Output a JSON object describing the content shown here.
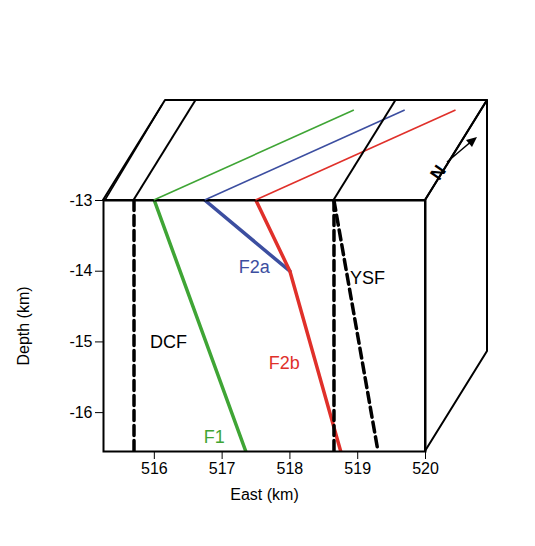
{
  "chart_data": {
    "type": "line",
    "xlabel": "East (km)",
    "ylabel": "Depth (km)",
    "xlim": [
      515.25,
      520
    ],
    "ylim": [
      -16.55,
      -13
    ],
    "xticks": [
      516,
      517,
      518,
      519,
      520
    ],
    "yticks": [
      -16,
      -15,
      -14,
      -13
    ],
    "annotations": [
      "N"
    ],
    "series": [
      {
        "name": "DCF",
        "color": "#000000",
        "line_style": "dashed",
        "x": [
          515.7,
          515.7
        ],
        "values": [
          -13,
          -16.55
        ]
      },
      {
        "name": "F1",
        "color": "#3fa535",
        "line_style": "solid",
        "x": [
          516.0,
          517.35
        ],
        "values": [
          -13,
          -16.55
        ]
      },
      {
        "name": "F2a",
        "color": "#3c4ea0",
        "line_style": "solid",
        "x": [
          516.75,
          518.0
        ],
        "values": [
          -13,
          -14
        ]
      },
      {
        "name": "F2b",
        "color": "#e0302a",
        "line_style": "solid",
        "x": [
          517.5,
          518.0,
          518.75
        ],
        "values": [
          -13,
          -14,
          -16.55
        ]
      },
      {
        "name": "YSF",
        "color": "#000000",
        "line_style": "dashed",
        "x": [
          518.65,
          518.65,
          null,
          518.65,
          519.3
        ],
        "values": [
          -13,
          -16.55,
          null,
          -13,
          -16.55
        ]
      }
    ]
  }
}
